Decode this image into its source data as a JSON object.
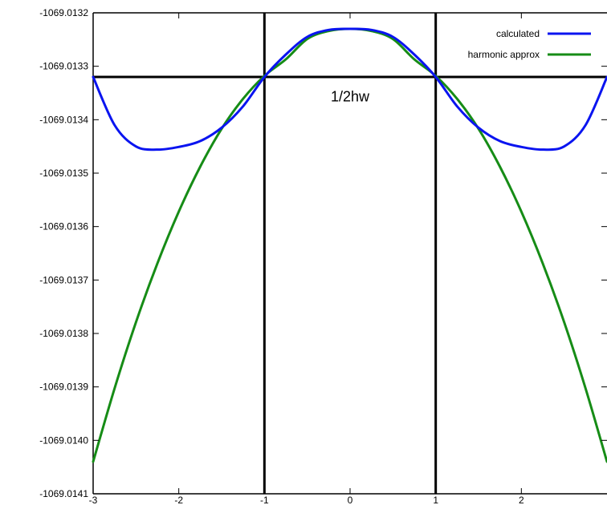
{
  "chart_data": {
    "type": "line",
    "title": "",
    "xlabel": "",
    "ylabel": "",
    "xlim": [
      -3,
      3
    ],
    "ylim": [
      -1069.0141,
      -1069.0132
    ],
    "xticks": [
      {
        "value": -3,
        "label": "-3"
      },
      {
        "value": -2,
        "label": "-2"
      },
      {
        "value": -1,
        "label": "-1"
      },
      {
        "value": 0,
        "label": "0"
      },
      {
        "value": 1,
        "label": "1"
      },
      {
        "value": 2,
        "label": "2"
      }
    ],
    "yticks": [
      {
        "value": -1069.0132,
        "label": "-1069.0132"
      },
      {
        "value": -1069.0133,
        "label": "-1069.0133"
      },
      {
        "value": -1069.0134,
        "label": "-1069.0134"
      },
      {
        "value": -1069.0135,
        "label": "-1069.0135"
      },
      {
        "value": -1069.0136,
        "label": "-1069.0136"
      },
      {
        "value": -1069.0137,
        "label": "-1069.0137"
      },
      {
        "value": -1069.0138,
        "label": "-1069.0138"
      },
      {
        "value": -1069.0139,
        "label": "-1069.0139"
      },
      {
        "value": -1069.014,
        "label": "-1069.0140"
      },
      {
        "value": -1069.0141,
        "label": "-1069.0141"
      }
    ],
    "grid": false,
    "legend": {
      "position": "top-right"
    },
    "series": [
      {
        "name": "calculated",
        "color": "#0a14f0",
        "x": [
          -3,
          -2.75,
          -2.5,
          -2.25,
          -2,
          -1.75,
          -1.5,
          -1.25,
          -1,
          -0.75,
          -0.5,
          -0.25,
          0,
          0.25,
          0.5,
          0.75,
          1,
          1.25,
          1.5,
          1.75,
          2,
          2.25,
          2.5,
          2.75,
          3
        ],
        "y": [
          -1069.01332,
          -1069.01341,
          -1069.01345,
          -1069.013456,
          -1069.013451,
          -1069.01344,
          -1069.013415,
          -1069.013375,
          -1069.01332,
          -1069.013278,
          -1069.013245,
          -1069.013232,
          -1069.01323,
          -1069.013232,
          -1069.013245,
          -1069.013278,
          -1069.01332,
          -1069.013375,
          -1069.013415,
          -1069.01344,
          -1069.013451,
          -1069.013456,
          -1069.01345,
          -1069.01341,
          -1069.01332
        ]
      },
      {
        "name": "harmonic approx",
        "color": "#168c16",
        "x": [
          -3,
          -2.75,
          -2.5,
          -2.25,
          -2,
          -1.75,
          -1.5,
          -1.25,
          -1,
          -0.75,
          -0.5,
          -0.25,
          0,
          0.25,
          0.5,
          0.75,
          1,
          1.25,
          1.5,
          1.75,
          2,
          2.25,
          2.5,
          2.75,
          3
        ],
        "y": [
          -1069.01404,
          -1069.013903,
          -1069.013779,
          -1069.013669,
          -1069.013572,
          -1069.013488,
          -1069.013417,
          -1069.013361,
          -1069.013318,
          -1069.013287,
          -1069.013249,
          -1069.013234,
          -1069.01323,
          -1069.013234,
          -1069.013249,
          -1069.013287,
          -1069.013318,
          -1069.013361,
          -1069.013417,
          -1069.013488,
          -1069.013572,
          -1069.013669,
          -1069.013779,
          -1069.013903,
          -1069.01404
        ]
      }
    ],
    "reference_lines": [
      {
        "orientation": "vertical",
        "value": -1
      },
      {
        "orientation": "vertical",
        "value": 1
      },
      {
        "orientation": "horizontal",
        "value": -1069.01332
      }
    ],
    "annotations": [
      {
        "text": "1/2hw",
        "x": 0,
        "y": -1069.013345
      }
    ]
  }
}
